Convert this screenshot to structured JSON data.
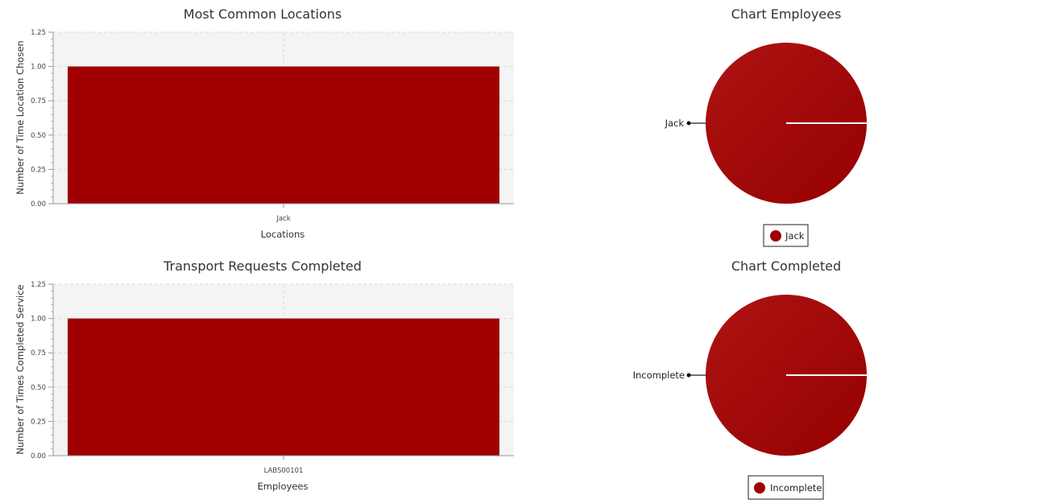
{
  "chart_data": [
    {
      "type": "bar",
      "title": "Most Common Locations",
      "xlabel": "Locations",
      "ylabel": "Number of Time Location Chosen",
      "categories": [
        "Jack"
      ],
      "values": [
        1.0
      ],
      "ylim": [
        0,
        1.25
      ],
      "yticks": [
        "0.00",
        "0.25",
        "0.50",
        "0.75",
        "1.00",
        "1.25"
      ],
      "grid": true,
      "color": "#a00000"
    },
    {
      "type": "pie",
      "title": "Chart Employees",
      "labels": [
        "Jack"
      ],
      "values": [
        1
      ],
      "legend": "bottom",
      "color": "#a00000"
    },
    {
      "type": "bar",
      "title": "Transport Requests Completed",
      "xlabel": "Employees",
      "ylabel": "Number of Times Completed Service",
      "categories": [
        "LABS00101"
      ],
      "values": [
        1.0
      ],
      "ylim": [
        0,
        1.25
      ],
      "yticks": [
        "0.00",
        "0.25",
        "0.50",
        "0.75",
        "1.00",
        "1.25"
      ],
      "grid": true,
      "color": "#a00000"
    },
    {
      "type": "pie",
      "title": "Chart Completed",
      "labels": [
        "Incomplete"
      ],
      "values": [
        1
      ],
      "legend": "bottom",
      "color": "#a00000"
    }
  ]
}
